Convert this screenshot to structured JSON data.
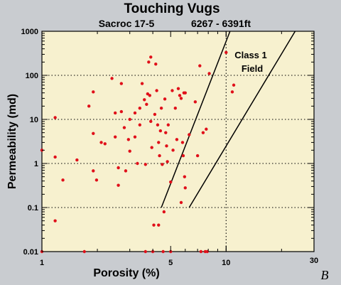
{
  "chart_data": {
    "type": "scatter",
    "title": "Touching Vugs",
    "subtitle_left": "Sacroc 17-5",
    "subtitle_right": "6267 - 6391ft",
    "xlabel": "Porosity (%)",
    "ylabel": "Permeability (md)",
    "x_scale": "log",
    "y_scale": "log",
    "xlim": [
      1,
      30
    ],
    "ylim": [
      0.01,
      1000
    ],
    "x_ticks": [
      {
        "value": 1,
        "label": "1"
      },
      {
        "value": 5,
        "label": "5"
      },
      {
        "value": 10,
        "label": "10"
      },
      {
        "value": 30,
        "label": "30"
      }
    ],
    "y_ticks": [
      {
        "value": 0.01,
        "label": "0.01"
      },
      {
        "value": 0.1,
        "label": "0.1"
      },
      {
        "value": 1,
        "label": "1"
      },
      {
        "value": 10,
        "label": "10"
      },
      {
        "value": 100,
        "label": "100"
      },
      {
        "value": 1000,
        "label": "1000"
      }
    ],
    "grid": "dotted horizontal at 0.1, 1, 10, 100; dotted vertical at 10",
    "annotation": [
      "Class 1",
      "Field"
    ],
    "panel_label": "B",
    "colors": {
      "points": "#e0101a",
      "plot_background": "#f7f1cf",
      "lines": "#000000"
    },
    "field_lines": [
      {
        "points": [
          [
            4.45,
            0.1
          ],
          [
            10.5,
            1000
          ]
        ]
      },
      {
        "points": [
          [
            6.3,
            0.1
          ],
          [
            23.7,
            1000
          ]
        ]
      }
    ],
    "points": [
      [
        1.0,
        2.0
      ],
      [
        1.0,
        0.01
      ],
      [
        1.18,
        11.0
      ],
      [
        1.18,
        1.4
      ],
      [
        1.18,
        0.05
      ],
      [
        1.3,
        0.42
      ],
      [
        1.55,
        1.2
      ],
      [
        1.7,
        0.01
      ],
      [
        1.8,
        20.0
      ],
      [
        1.9,
        42.0
      ],
      [
        1.9,
        4.8
      ],
      [
        1.9,
        0.68
      ],
      [
        1.98,
        0.42
      ],
      [
        2.1,
        3.0
      ],
      [
        2.2,
        2.8
      ],
      [
        2.4,
        85.0
      ],
      [
        2.5,
        14.0
      ],
      [
        2.5,
        4.0
      ],
      [
        2.6,
        0.8
      ],
      [
        2.6,
        0.32
      ],
      [
        2.7,
        65.0
      ],
      [
        2.7,
        15.0
      ],
      [
        2.8,
        6.5
      ],
      [
        2.85,
        0.68
      ],
      [
        2.95,
        3.5
      ],
      [
        3.0,
        1.9
      ],
      [
        3.0,
        10.0
      ],
      [
        3.2,
        14.0
      ],
      [
        3.2,
        4.0
      ],
      [
        3.3,
        1.0
      ],
      [
        3.4,
        7.5
      ],
      [
        3.4,
        18.0
      ],
      [
        3.5,
        65.0
      ],
      [
        3.6,
        28.0
      ],
      [
        3.65,
        0.95
      ],
      [
        3.65,
        0.01
      ],
      [
        3.7,
        22.0
      ],
      [
        3.75,
        38.0
      ],
      [
        3.8,
        200.0
      ],
      [
        3.85,
        35.0
      ],
      [
        3.9,
        260.0
      ],
      [
        3.9,
        9.0
      ],
      [
        3.95,
        2.3
      ],
      [
        4.0,
        0.01
      ],
      [
        4.05,
        0.04
      ],
      [
        4.1,
        13.0
      ],
      [
        4.15,
        180.0
      ],
      [
        4.2,
        45.0
      ],
      [
        4.25,
        7.5
      ],
      [
        4.3,
        3.0
      ],
      [
        4.3,
        0.04
      ],
      [
        4.35,
        1.5
      ],
      [
        4.4,
        5.5
      ],
      [
        4.45,
        18.0
      ],
      [
        4.5,
        0.95
      ],
      [
        4.55,
        0.01
      ],
      [
        4.6,
        0.08
      ],
      [
        4.65,
        29.0
      ],
      [
        4.7,
        5.0
      ],
      [
        4.75,
        2.5
      ],
      [
        4.8,
        1.1
      ],
      [
        4.85,
        7.5
      ],
      [
        5.0,
        0.38
      ],
      [
        5.0,
        0.01
      ],
      [
        5.1,
        45.0
      ],
      [
        5.15,
        2.0
      ],
      [
        5.3,
        18.0
      ],
      [
        5.4,
        3.5
      ],
      [
        5.5,
        50.0
      ],
      [
        5.6,
        35.0
      ],
      [
        5.7,
        0.13
      ],
      [
        5.7,
        30.0
      ],
      [
        5.8,
        3.0
      ],
      [
        5.85,
        1.5
      ],
      [
        5.9,
        40.0
      ],
      [
        5.95,
        0.5
      ],
      [
        6.0,
        0.28
      ],
      [
        6.0,
        40.0
      ],
      [
        6.3,
        4.5
      ],
      [
        6.8,
        25.0
      ],
      [
        7.0,
        1.5
      ],
      [
        7.2,
        165.0
      ],
      [
        7.3,
        0.01
      ],
      [
        7.5,
        5.0
      ],
      [
        7.7,
        0.01
      ],
      [
        7.8,
        6.0
      ],
      [
        7.9,
        0.01
      ],
      [
        8.1,
        110.0
      ],
      [
        10.0,
        330.0
      ],
      [
        10.8,
        42.0
      ],
      [
        11.0,
        60.0
      ]
    ]
  }
}
